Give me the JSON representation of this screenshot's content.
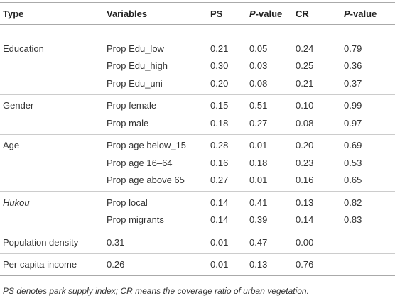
{
  "header": [
    "Type",
    "Variables",
    "PS",
    "P-value",
    "CR",
    "P-value"
  ],
  "groups": [
    {
      "type": "Education",
      "rows": [
        [
          "Prop Edu_low",
          "0.21",
          "0.05",
          "0.24",
          "0.79"
        ],
        [
          "Prop Edu_high",
          "0.30",
          "0.03",
          "0.25",
          "0.36"
        ],
        [
          "Prop Edu_uni",
          "0.20",
          "0.08",
          "0.21",
          "0.37"
        ]
      ]
    },
    {
      "type": "Gender",
      "rows": [
        [
          "Prop female",
          "0.15",
          "0.51",
          "0.10",
          "0.99"
        ],
        [
          "Prop male",
          "0.18",
          "0.27",
          "0.08",
          "0.97"
        ]
      ]
    },
    {
      "type": "Age",
      "rows": [
        [
          "Prop age below_15",
          "0.28",
          "0.01",
          "0.20",
          "0.69"
        ],
        [
          "Prop age 16–64",
          "0.16",
          "0.18",
          "0.23",
          "0.53"
        ],
        [
          "Prop age above 65",
          "0.27",
          "0.01",
          "0.16",
          "0.65"
        ]
      ]
    },
    {
      "type": "Hukou",
      "rows": [
        [
          "Prop local",
          "0.14",
          "0.41",
          "0.13",
          "0.82"
        ],
        [
          "Prop migrants",
          "0.14",
          "0.39",
          "0.14",
          "0.83"
        ]
      ]
    },
    {
      "type": "Population density",
      "rows": [
        [
          "0.31",
          "0.01",
          "0.47",
          "0.00"
        ]
      ]
    },
    {
      "type": "Per capita income",
      "rows": [
        [
          "0.26",
          "0.01",
          "0.13",
          "0.76"
        ]
      ]
    }
  ],
  "footnote": "PS denotes park supply index; CR means the coverage ratio of urban vegetation."
}
